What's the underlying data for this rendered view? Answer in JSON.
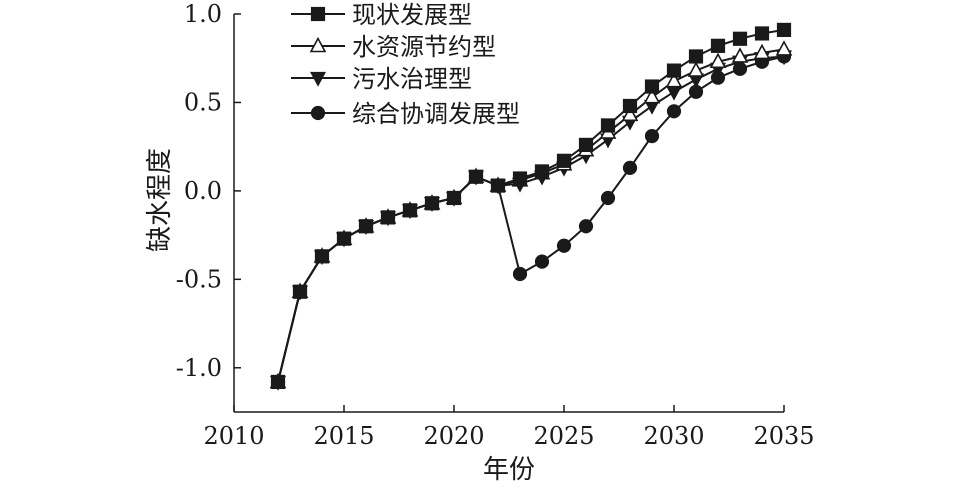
{
  "chart_data": {
    "type": "line",
    "xlabel": "年份",
    "ylabel": "缺水程度",
    "xlim": [
      2010,
      2035
    ],
    "ylim": [
      -1.25,
      1.0
    ],
    "xticks": [
      2010,
      2015,
      2020,
      2025,
      2030,
      2035
    ],
    "yticks": [
      1.0,
      0.5,
      0.0,
      -0.5,
      -1.0
    ],
    "ytick_labels": [
      "1.0",
      "0.5",
      "0.0",
      "-0.5",
      "-1.0"
    ],
    "legend_position": "top-left",
    "grid": false,
    "x": [
      2012,
      2013,
      2014,
      2015,
      2016,
      2017,
      2018,
      2019,
      2020,
      2021,
      2022,
      2023,
      2024,
      2025,
      2026,
      2027,
      2028,
      2029,
      2030,
      2031,
      2032,
      2033,
      2034,
      2035
    ],
    "series": [
      {
        "name": "现状发展型",
        "marker": "square",
        "values": [
          -1.08,
          -0.57,
          -0.37,
          -0.27,
          -0.2,
          -0.15,
          -0.11,
          -0.07,
          -0.04,
          0.08,
          0.03,
          0.07,
          0.11,
          0.17,
          0.26,
          0.37,
          0.48,
          0.59,
          0.68,
          0.76,
          0.82,
          0.86,
          0.89,
          0.91
        ]
      },
      {
        "name": "水资源节约型",
        "marker": "triangle-up",
        "values": [
          -1.08,
          -0.57,
          -0.37,
          -0.27,
          -0.2,
          -0.15,
          -0.11,
          -0.07,
          -0.04,
          0.08,
          0.03,
          0.06,
          0.1,
          0.15,
          0.23,
          0.33,
          0.43,
          0.53,
          0.62,
          0.68,
          0.73,
          0.76,
          0.78,
          0.8
        ]
      },
      {
        "name": "污水治理型",
        "marker": "triangle-down",
        "values": [
          -1.08,
          -0.57,
          -0.37,
          -0.27,
          -0.2,
          -0.15,
          -0.11,
          -0.07,
          -0.04,
          0.08,
          0.03,
          0.04,
          0.08,
          0.13,
          0.2,
          0.29,
          0.39,
          0.48,
          0.56,
          0.63,
          0.69,
          0.73,
          0.75,
          0.76
        ]
      },
      {
        "name": "综合协调发展型",
        "marker": "circle",
        "values": [
          -1.08,
          -0.57,
          -0.37,
          -0.27,
          -0.2,
          -0.15,
          -0.11,
          -0.07,
          -0.04,
          0.08,
          0.03,
          -0.47,
          -0.4,
          -0.31,
          -0.2,
          -0.04,
          0.13,
          0.31,
          0.45,
          0.56,
          0.64,
          0.69,
          0.73,
          0.76
        ]
      }
    ]
  }
}
